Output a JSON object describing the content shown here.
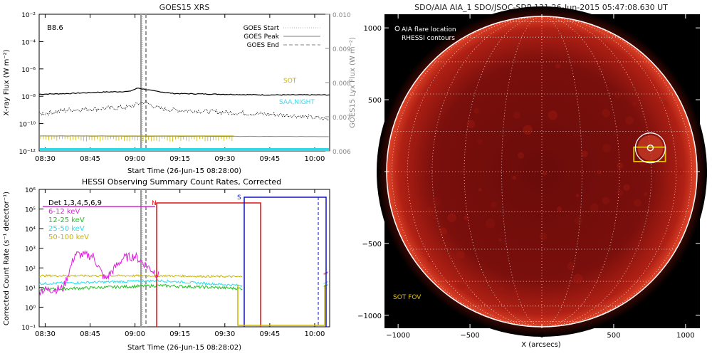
{
  "chart_data": [
    {
      "type": "line",
      "title": "GOES15 XRS",
      "xlabel": "Start Time (26-Jun-15 08:28:00)",
      "ylabel": "X-ray Flux (W m⁻²)",
      "ylabel_right": "GOES15 Lyx Flux (W m⁻²)",
      "x_ticks": [
        "08:30",
        "08:45",
        "09:00",
        "09:15",
        "09:30",
        "09:45",
        "10:00"
      ],
      "y_ticks_left": [
        "10⁻¹²",
        "10⁻¹⁰",
        "10⁻⁸",
        "10⁻⁶",
        "10⁻⁴",
        "10⁻²"
      ],
      "y_ticks_right": [
        "0.006",
        "0.007",
        "0.008",
        "0.009",
        "0.010"
      ],
      "class_label": "B8.6",
      "legend": [
        {
          "label": "GOES Start",
          "style": "dotted",
          "color": "#aaaaaa"
        },
        {
          "label": "GOES Peak",
          "style": "solid",
          "color": "#aaaaaa"
        },
        {
          "label": "GOES End",
          "style": "dashed",
          "color": "#aaaaaa"
        }
      ],
      "annotations": [
        {
          "text": "SOT",
          "color": "#c8b400"
        },
        {
          "text": "SAA,NIGHT",
          "color": "#40d8e8"
        }
      ],
      "event_times": {
        "start": "08:58",
        "peak": "09:02",
        "end": "09:05"
      },
      "series": [
        {
          "name": "long channel",
          "color": "#000000",
          "style": "solid",
          "x_min": [
            0,
            10,
            20,
            30,
            33,
            38,
            45,
            60,
            75,
            97
          ],
          "log_flux": [
            -7.85,
            -7.8,
            -7.7,
            -7.65,
            -7.4,
            -7.6,
            -7.8,
            -7.85,
            -7.9,
            -7.9
          ]
        },
        {
          "name": "short channel",
          "color": "#000000",
          "style": "dotted",
          "x_min": [
            0,
            10,
            20,
            30,
            35,
            40,
            45,
            55,
            65,
            75,
            85,
            97
          ],
          "log_flux": [
            -9.3,
            -9.0,
            -8.9,
            -8.8,
            -8.4,
            -8.9,
            -9.0,
            -9.1,
            -9.2,
            -9.3,
            -9.4,
            -9.7
          ]
        },
        {
          "name": "Lyx",
          "color": "#888888",
          "style": "solid",
          "x_min": [
            0,
            97
          ],
          "log_flux": [
            -10.9,
            -10.95
          ]
        }
      ]
    },
    {
      "type": "line",
      "title": "HESSI Observing Summary Count Rates, Corrected",
      "xlabel": "Start Time (26-Jun-15 08:28:02)",
      "ylabel": "Corrected Count Rate (s⁻¹ detector⁻¹)",
      "x_ticks": [
        "08:30",
        "08:45",
        "09:00",
        "09:15",
        "09:30",
        "09:45",
        "10:00"
      ],
      "y_ticks": [
        "10⁻¹",
        "10⁰",
        "10¹",
        "10²",
        "10³",
        "10⁴",
        "10⁵",
        "10⁶"
      ],
      "detectors_label": "Det 1,3,4,5,6,9",
      "series": [
        {
          "name": "6-12 keV",
          "color": "#e020e0",
          "x_min": [
            0,
            8,
            12,
            18,
            22,
            28,
            32,
            40
          ],
          "log_rate": [
            0.85,
            0.95,
            2.7,
            2.6,
            1.4,
            2.5,
            2.6,
            1.6
          ]
        },
        {
          "name": "12-25 keV",
          "color": "#20c020",
          "x_min": [
            0,
            40,
            68
          ],
          "log_rate": [
            0.9,
            1.1,
            0.95
          ]
        },
        {
          "name": "25-50 keV",
          "color": "#20e0f0",
          "x_min": [
            0,
            40,
            68
          ],
          "log_rate": [
            1.2,
            1.35,
            1.1
          ]
        },
        {
          "name": "50-100 keV",
          "color": "#c8b400",
          "x_min": [
            0,
            40,
            68
          ],
          "log_rate": [
            1.6,
            1.6,
            1.55
          ]
        }
      ],
      "markers": [
        {
          "label": "N",
          "color": "#e01010"
        },
        {
          "label": "S",
          "color": "#1010c0"
        }
      ]
    },
    {
      "type": "scatter",
      "title": "SDO/AIA AIA_1 SDO/JSOC-SDP 131 26-Jun-2015 05:47:08.630 UT",
      "xlabel": "X (arcsecs)",
      "ylabel": "",
      "x_ticks": [
        "−1000",
        "−500",
        "0",
        "500",
        "1000"
      ],
      "y_ticks": [
        "1000",
        "500",
        "0",
        "−500",
        "−1000"
      ],
      "xlim": [
        -1100,
        1100
      ],
      "ylim": [
        -1100,
        1100
      ],
      "legend": [
        "AIA flare location",
        "RHESSI contours"
      ],
      "fov_label": "SOT FOV",
      "points": [
        {
          "name": "AIA flare location",
          "x": 755,
          "y": 165
        }
      ],
      "fov_box": {
        "x": [
          640,
          860
        ],
        "y": [
          70,
          170
        ],
        "color": "#e0c000"
      }
    }
  ]
}
